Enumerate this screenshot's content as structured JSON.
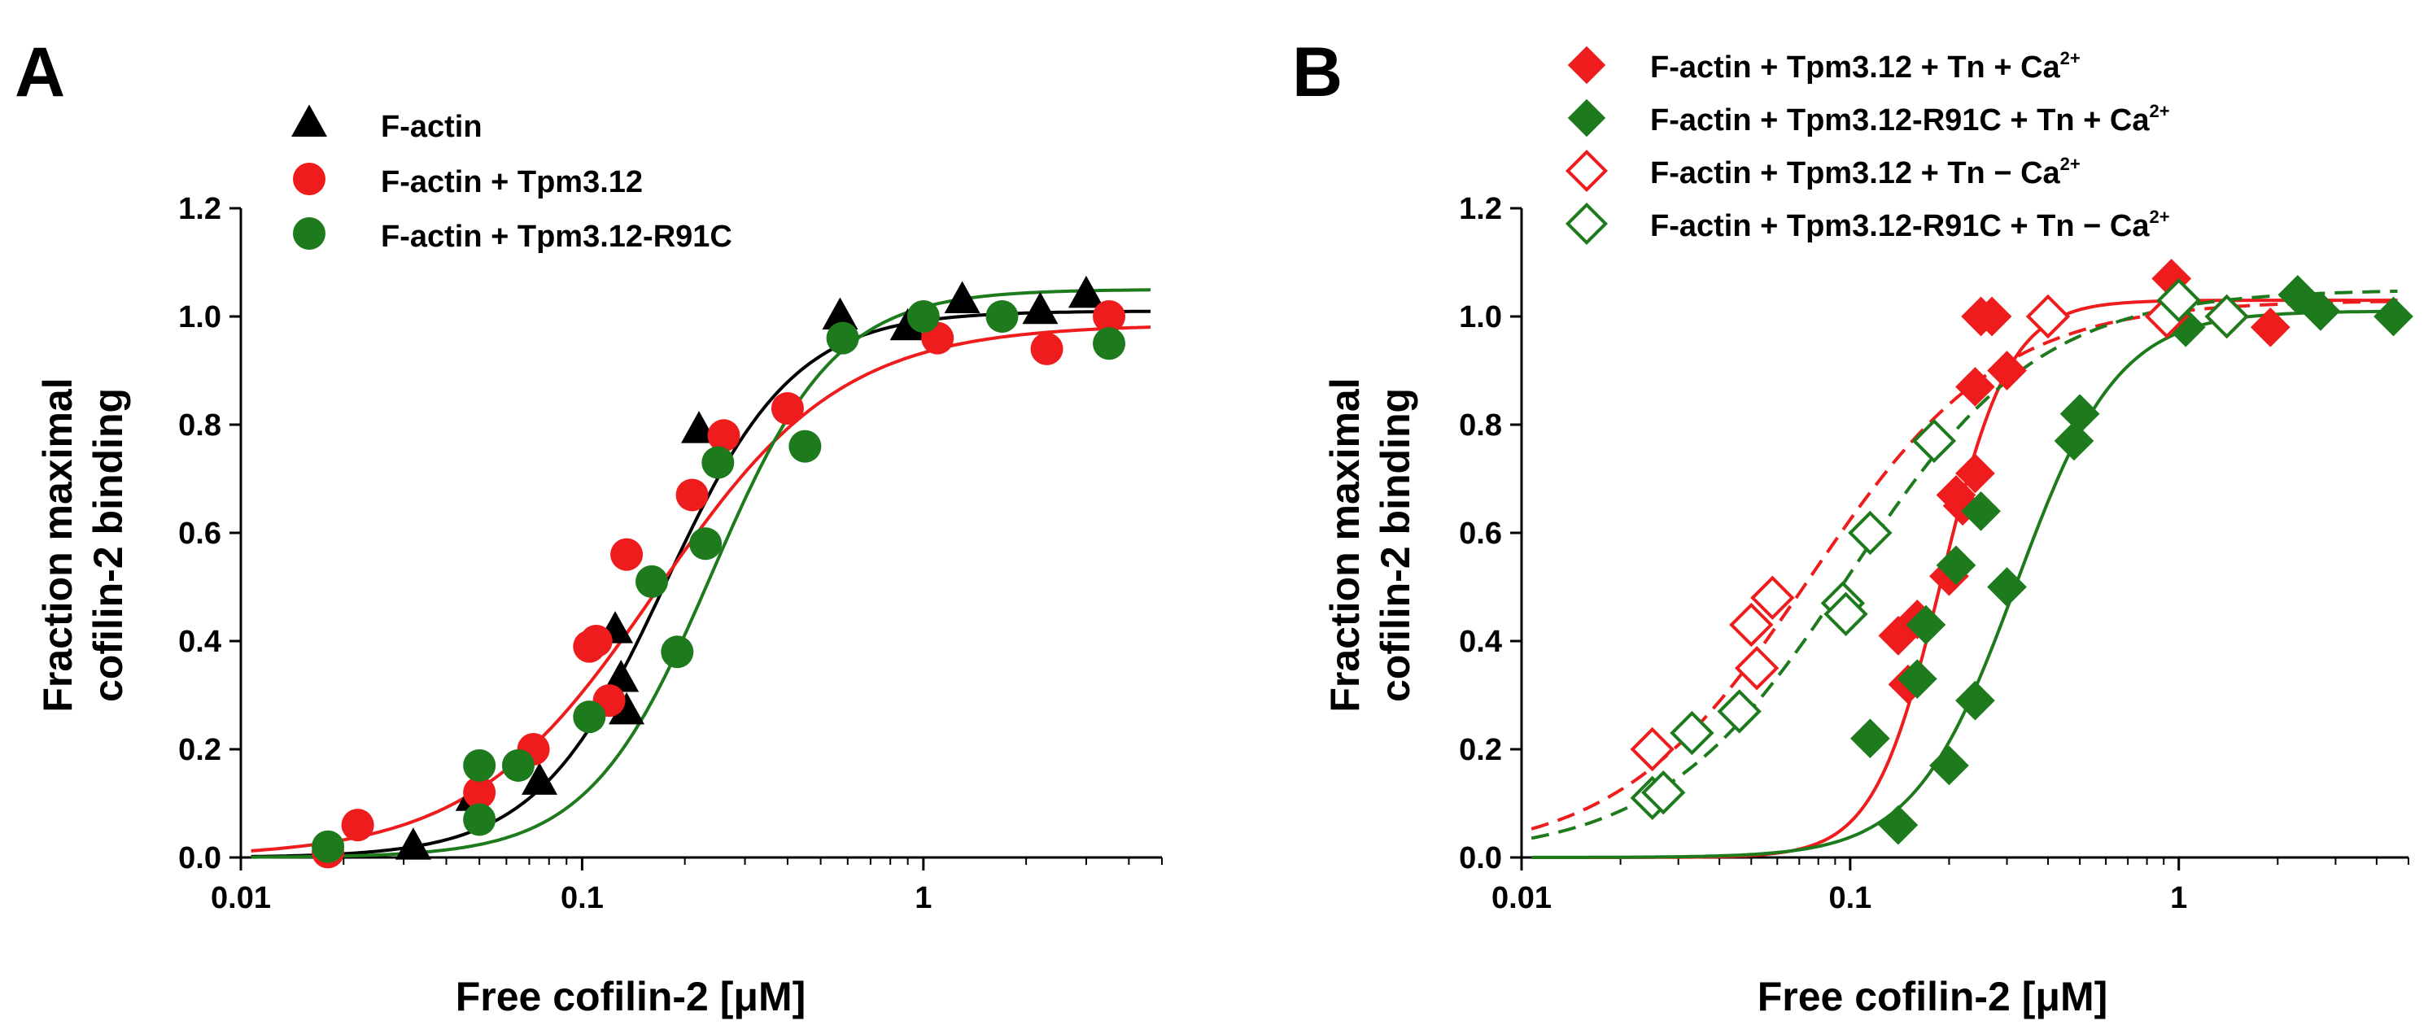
{
  "colors": {
    "black": "#000000",
    "red": "#ee1c1c",
    "green": "#1d7a1d"
  },
  "chart_data": [
    {
      "panel_label": "A",
      "type": "scatter",
      "xscale": "log",
      "xlim": [
        0.01,
        5
      ],
      "ylim": [
        0,
        1.2
      ],
      "xlabel": "Free cofilin-2 [μM]",
      "ylabel_lines": [
        "Fraction maximal",
        "cofilin-2 binding"
      ],
      "x_ticks": [
        0.01,
        0.1,
        1
      ],
      "x_tick_labels": [
        "0.01",
        "0.1",
        "1"
      ],
      "y_ticks": [
        0,
        0.2,
        0.4,
        0.6,
        0.8,
        1.0,
        1.2
      ],
      "y_tick_labels": [
        "0.0",
        "0.2",
        "0.4",
        "0.6",
        "0.8",
        "1.0",
        "1.2"
      ],
      "legend_position": "top-left",
      "series": [
        {
          "name": "F-actin",
          "color": "#000000",
          "marker": "triangle",
          "filled": true,
          "points": [
            [
              0.032,
              0.02
            ],
            [
              0.048,
              0.11
            ],
            [
              0.075,
              0.14
            ],
            [
              0.125,
              0.42
            ],
            [
              0.13,
              0.33
            ],
            [
              0.135,
              0.27
            ],
            [
              0.22,
              0.79
            ],
            [
              0.57,
              1.0
            ],
            [
              0.9,
              0.98
            ],
            [
              1.3,
              1.03
            ],
            [
              2.2,
              1.01
            ],
            [
              3.0,
              1.04
            ]
          ],
          "fit": {
            "top": 1.01,
            "ec50": 0.175,
            "hill": 2.3
          }
        },
        {
          "name": "F-actin + Tpm3.12",
          "color": "#ee1c1c",
          "marker": "circle",
          "filled": true,
          "points": [
            [
              0.018,
              0.01
            ],
            [
              0.022,
              0.06
            ],
            [
              0.05,
              0.12
            ],
            [
              0.072,
              0.2
            ],
            [
              0.105,
              0.39
            ],
            [
              0.11,
              0.4
            ],
            [
              0.12,
              0.29
            ],
            [
              0.135,
              0.56
            ],
            [
              0.21,
              0.67
            ],
            [
              0.26,
              0.78
            ],
            [
              0.4,
              0.83
            ],
            [
              1.1,
              0.96
            ],
            [
              2.3,
              0.94
            ],
            [
              3.5,
              1.0
            ]
          ],
          "fit": {
            "top": 0.985,
            "ec50": 0.165,
            "hill": 1.6
          }
        },
        {
          "name": "F-actin + Tpm3.12-R91C",
          "color": "#1d7a1d",
          "marker": "circle",
          "filled": true,
          "points": [
            [
              0.018,
              0.02
            ],
            [
              0.05,
              0.17
            ],
            [
              0.05,
              0.07
            ],
            [
              0.065,
              0.17
            ],
            [
              0.105,
              0.26
            ],
            [
              0.16,
              0.51
            ],
            [
              0.19,
              0.38
            ],
            [
              0.23,
              0.58
            ],
            [
              0.25,
              0.73
            ],
            [
              0.45,
              0.76
            ],
            [
              0.58,
              0.96
            ],
            [
              1.0,
              1.0
            ],
            [
              1.7,
              1.0
            ],
            [
              3.5,
              0.95
            ]
          ],
          "fit": {
            "top": 1.05,
            "ec50": 0.24,
            "hill": 2.4
          }
        }
      ]
    },
    {
      "panel_label": "B",
      "type": "scatter",
      "xscale": "log",
      "xlim": [
        0.01,
        5
      ],
      "ylim": [
        0,
        1.2
      ],
      "xlabel": "Free cofilin-2 [μM]",
      "ylabel_lines": [
        "Fraction maximal",
        "cofilin-2 binding"
      ],
      "x_ticks": [
        0.01,
        0.1,
        1
      ],
      "x_tick_labels": [
        "0.01",
        "0.1",
        "1"
      ],
      "y_ticks": [
        0,
        0.2,
        0.4,
        0.6,
        0.8,
        1.0,
        1.2
      ],
      "y_tick_labels": [
        "0.0",
        "0.2",
        "0.4",
        "0.6",
        "0.8",
        "1.0",
        "1.2"
      ],
      "legend_position": "top",
      "series": [
        {
          "name_main": "F-actin + Tpm3.12 + Tn + Ca",
          "name_sup": "2+",
          "color": "#ee1c1c",
          "marker": "diamond",
          "filled": true,
          "dashed": false,
          "points": [
            [
              0.14,
              0.41
            ],
            [
              0.15,
              0.32
            ],
            [
              0.16,
              0.44
            ],
            [
              0.2,
              0.52
            ],
            [
              0.21,
              0.67
            ],
            [
              0.22,
              0.65
            ],
            [
              0.24,
              0.71
            ],
            [
              0.24,
              0.87
            ],
            [
              0.25,
              1.0
            ],
            [
              0.27,
              1.0
            ],
            [
              0.3,
              0.9
            ],
            [
              0.95,
              1.07
            ],
            [
              1.4,
              1.0
            ],
            [
              1.9,
              0.98
            ]
          ],
          "fit": {
            "top": 1.03,
            "ec50": 0.19,
            "hill": 4.2
          }
        },
        {
          "name_main": "F-actin + Tpm3.12-R91C + Tn + Ca",
          "name_sup": "2+",
          "color": "#1d7a1d",
          "marker": "diamond",
          "filled": true,
          "dashed": false,
          "points": [
            [
              0.115,
              0.22
            ],
            [
              0.14,
              0.06
            ],
            [
              0.16,
              0.33
            ],
            [
              0.17,
              0.43
            ],
            [
              0.2,
              0.17
            ],
            [
              0.21,
              0.54
            ],
            [
              0.24,
              0.29
            ],
            [
              0.25,
              0.64
            ],
            [
              0.3,
              0.5
            ],
            [
              0.48,
              0.77
            ],
            [
              0.5,
              0.82
            ],
            [
              1.05,
              0.98
            ],
            [
              2.3,
              1.04
            ],
            [
              2.7,
              1.01
            ],
            [
              4.5,
              1.0
            ]
          ],
          "fit": {
            "top": 1.01,
            "ec50": 0.32,
            "hill": 2.8
          }
        },
        {
          "name_main": "F-actin + Tpm3.12 + Tn − Ca",
          "name_sup": "2+",
          "color": "#ee1c1c",
          "marker": "diamond",
          "filled": false,
          "dashed": true,
          "points": [
            [
              0.025,
              0.2
            ],
            [
              0.05,
              0.43
            ],
            [
              0.052,
              0.35
            ],
            [
              0.058,
              0.48
            ],
            [
              0.4,
              1.0
            ],
            [
              0.92,
              1.0
            ],
            [
              1.4,
              1.0
            ]
          ],
          "fit": {
            "top": 1.03,
            "ec50": 0.075,
            "hill": 1.5
          }
        },
        {
          "name_main": "F-actin + Tpm3.12-R91C + Tn − Ca",
          "name_sup": "2+",
          "color": "#1d7a1d",
          "marker": "diamond",
          "filled": false,
          "dashed": true,
          "points": [
            [
              0.025,
              0.11
            ],
            [
              0.027,
              0.12
            ],
            [
              0.033,
              0.23
            ],
            [
              0.046,
              0.27
            ],
            [
              0.095,
              0.47
            ],
            [
              0.097,
              0.45
            ],
            [
              0.115,
              0.6
            ],
            [
              0.18,
              0.77
            ],
            [
              1.0,
              1.03
            ],
            [
              1.4,
              1.0
            ]
          ],
          "fit": {
            "top": 1.05,
            "ec50": 0.1,
            "hill": 1.5
          }
        }
      ]
    }
  ]
}
